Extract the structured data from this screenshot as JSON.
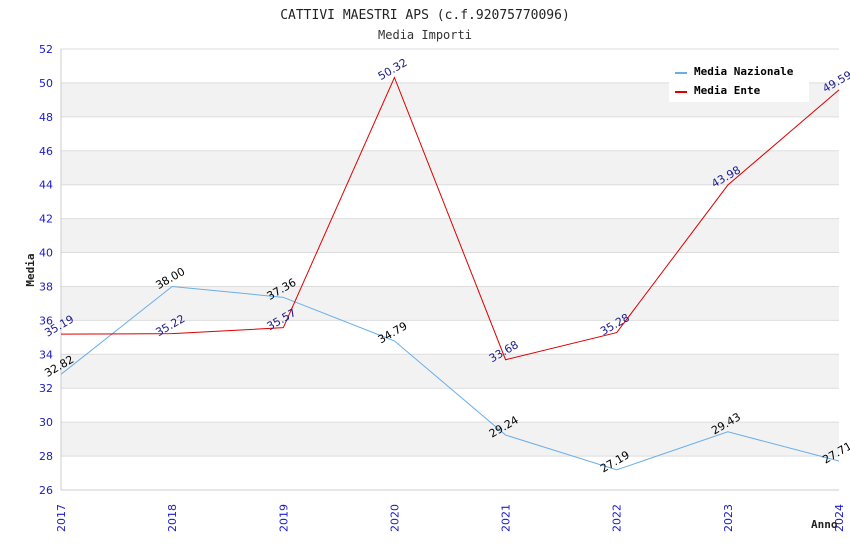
{
  "chart_data": {
    "type": "line",
    "title": "CATTIVI MAESTRI APS (c.f.92075770096)",
    "subtitle": "Media Importi",
    "xlabel": "Anno",
    "ylabel": "Media",
    "ylim": [
      26,
      52
    ],
    "yticks": [
      26,
      28,
      30,
      32,
      34,
      36,
      38,
      40,
      42,
      44,
      46,
      48,
      50,
      52
    ],
    "categories": [
      "2017",
      "2018",
      "2019",
      "2020",
      "2021",
      "2022",
      "2023",
      "2024"
    ],
    "legend_position": "top-right",
    "grid": true,
    "series": [
      {
        "name": "Media Nazionale",
        "color": "#6aaee8",
        "label_color": "#000000",
        "values": [
          32.82,
          38.0,
          37.36,
          34.79,
          29.24,
          27.19,
          29.43,
          27.71
        ],
        "labels": [
          "32.82",
          "38.00",
          "37.36",
          "34.79",
          "29.24",
          "27.19",
          "29.43",
          "27.71"
        ]
      },
      {
        "name": "Media Ente",
        "color": "#dd0000",
        "label_color": "#1a1a8c",
        "values": [
          35.19,
          35.22,
          35.57,
          50.32,
          33.68,
          35.28,
          43.98,
          49.59
        ],
        "labels": [
          "35.19",
          "35.22",
          "35.57",
          "50.32",
          "33.68",
          "35.28",
          "43.98",
          "49.59"
        ]
      }
    ]
  }
}
